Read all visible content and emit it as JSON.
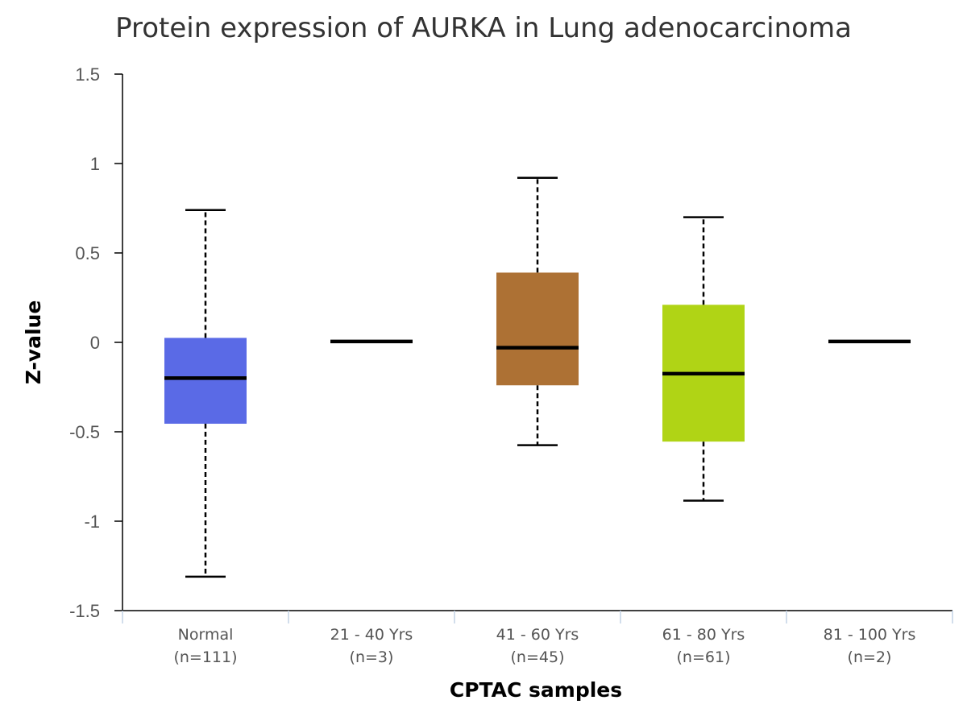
{
  "chart_data": {
    "type": "box",
    "title": "Protein expression of AURKA in Lung adenocarcinoma",
    "xlabel": "CPTAC samples",
    "ylabel": "Z-value",
    "ylim": [
      -1.5,
      1.5
    ],
    "yticks": [
      1.5,
      1,
      0.5,
      0,
      -0.5,
      -1,
      -1.5
    ],
    "grid": false,
    "categories": [
      {
        "label": "Normal",
        "n_label": "(n=111)",
        "color": "#5a6ae6",
        "min": -1.31,
        "q1": -0.455,
        "median": -0.2,
        "q3": 0.025,
        "max": 0.74
      },
      {
        "label": "21 - 40 Yrs",
        "n_label": "(n=3)",
        "color": "#000000",
        "min": 0.005,
        "q1": 0.005,
        "median": 0.005,
        "q3": 0.005,
        "max": 0.005
      },
      {
        "label": "41 - 60 Yrs",
        "n_label": "(n=45)",
        "color": "#ad7134",
        "min": -0.575,
        "q1": -0.24,
        "median": -0.03,
        "q3": 0.39,
        "max": 0.92
      },
      {
        "label": "61 - 80 Yrs",
        "n_label": "(n=61)",
        "color": "#b0d415",
        "min": -0.885,
        "q1": -0.555,
        "median": -0.175,
        "q3": 0.21,
        "max": 0.7
      },
      {
        "label": "81 - 100 Yrs",
        "n_label": "(n=2)",
        "color": "#000000",
        "min": 0.005,
        "q1": 0.005,
        "median": 0.005,
        "q3": 0.005,
        "max": 0.005
      }
    ]
  }
}
